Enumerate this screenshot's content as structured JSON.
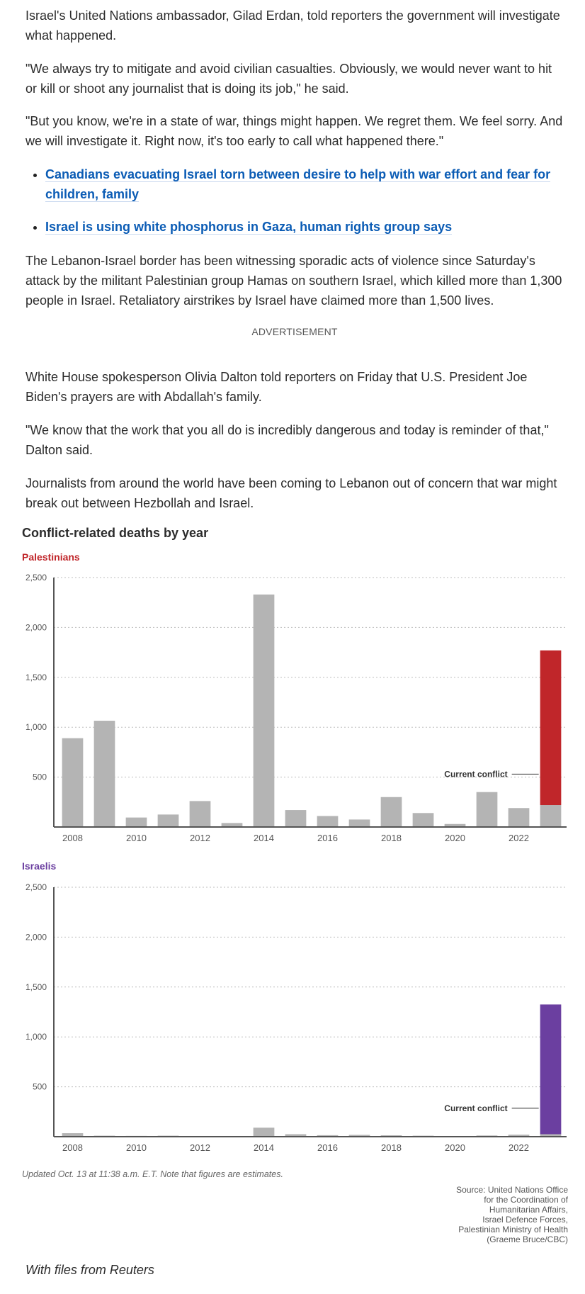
{
  "article": {
    "p1": "Israel's United Nations ambassador, Gilad Erdan, told reporters the government will investigate what happened.",
    "p2": "\"We always try to mitigate and avoid civilian casualties. Obviously, we would never want to hit or kill or shoot any journalist that is doing its job,\" he said.",
    "p3": "\"But you know, we're in a state of war, things might happen. We regret them. We feel sorry. And we will investigate it. Right now, it's too early to call what happened there.\"",
    "links": [
      "Canadians evacuating Israel torn between desire to help with war effort and fear for children, family",
      "Israel is using white phosphorus in Gaza, human rights group says"
    ],
    "p4": "The Lebanon-Israel border has been witnessing sporadic acts of violence since Saturday's attack by the militant Palestinian group Hamas on southern Israel, which killed more than 1,300 people in Israel. Retaliatory airstrikes by Israel have claimed more than 1,500 lives.",
    "advertisement": "ADVERTISEMENT",
    "p5": "White House spokesperson Olivia Dalton told reporters on Friday that U.S. President Joe Biden's prayers are with Abdallah's family.",
    "p6": "\"We know that the work that you all do is incredibly dangerous and today is reminder of that,\" Dalton said.",
    "p7": "Journalists from around the world have been coming to Lebanon out of concern that war might break out between Hezbollah and Israel.",
    "credit": "With files from Reuters"
  },
  "chart_meta": {
    "note": "Updated Oct. 13 at 11:38 a.m. E.T. Note that figures are estimates.",
    "source": [
      "Source: United Nations Office",
      "for the Coordination of",
      "Humanitarian Affairs,",
      "Israel Defence Forces,",
      "Palestinian Ministry of Health",
      "(Graeme Bruce/CBC)"
    ]
  },
  "chart_data": [
    {
      "type": "bar",
      "title": "Conflict-related deaths by year",
      "subtitle": "Palestinians",
      "x": [
        2008,
        2009,
        2010,
        2011,
        2012,
        2013,
        2014,
        2015,
        2016,
        2017,
        2018,
        2019,
        2020,
        2021,
        2022,
        2023
      ],
      "x_tick_labels": [
        "2008",
        "2010",
        "2012",
        "2014",
        "2016",
        "2018",
        "2020",
        "2022"
      ],
      "ylim": [
        0,
        2500
      ],
      "y_ticks": [
        500,
        1000,
        1500,
        2000,
        2500
      ],
      "y_tick_labels": [
        "500",
        "1,000",
        "1,500",
        "2,000",
        "2,500"
      ],
      "series": [
        {
          "values": [
            890,
            1065,
            95,
            125,
            260,
            40,
            2330,
            170,
            110,
            75,
            300,
            140,
            30,
            350,
            190,
            220
          ]
        },
        {
          "name": "Current conflict",
          "values": [
            0,
            0,
            0,
            0,
            0,
            0,
            0,
            0,
            0,
            0,
            0,
            0,
            0,
            0,
            0,
            1550
          ]
        }
      ],
      "annotation": "Current conflict",
      "grid": true,
      "colors": {
        "base": "#b4b4b4",
        "current": "#c0262a"
      }
    },
    {
      "type": "bar",
      "subtitle": "Israelis",
      "x": [
        2008,
        2009,
        2010,
        2011,
        2012,
        2013,
        2014,
        2015,
        2016,
        2017,
        2018,
        2019,
        2020,
        2021,
        2022,
        2023
      ],
      "x_tick_labels": [
        "2008",
        "2010",
        "2012",
        "2014",
        "2016",
        "2018",
        "2020",
        "2022"
      ],
      "ylim": [
        0,
        2500
      ],
      "y_ticks": [
        500,
        1000,
        1500,
        2000,
        2500
      ],
      "y_tick_labels": [
        "500",
        "1,000",
        "1,500",
        "2,000",
        "2,500"
      ],
      "series": [
        {
          "values": [
            35,
            10,
            8,
            10,
            5,
            3,
            90,
            25,
            15,
            18,
            14,
            10,
            3,
            12,
            20,
            25
          ]
        },
        {
          "name": "Current conflict",
          "values": [
            0,
            0,
            0,
            0,
            0,
            0,
            0,
            0,
            0,
            0,
            0,
            0,
            0,
            0,
            0,
            1300
          ]
        }
      ],
      "annotation": "Current conflict",
      "grid": true,
      "colors": {
        "base": "#b4b4b4",
        "current": "#6b3fa0"
      }
    }
  ]
}
